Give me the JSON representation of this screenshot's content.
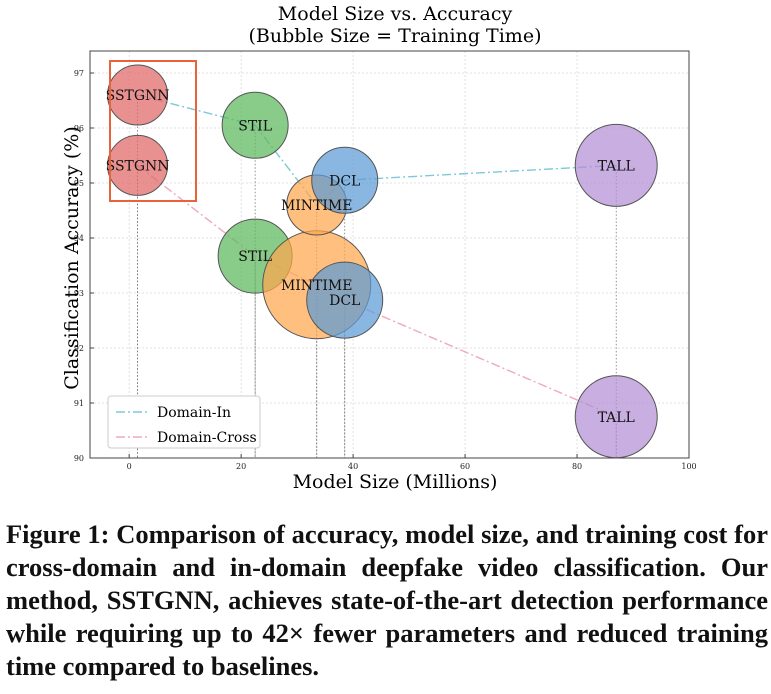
{
  "chart_data": {
    "type": "scatter",
    "title": "Model Size vs. Accuracy",
    "subtitle": "(Bubble Size = Training Time)",
    "xlabel": "Model Size (Millions)",
    "ylabel": "Classification Accuracy (%)",
    "xlim": [
      -7,
      100
    ],
    "ylim": [
      90,
      97.4
    ],
    "xticks": [
      0,
      20,
      40,
      60,
      80,
      100
    ],
    "yticks": [
      90,
      91,
      92,
      93,
      94,
      95,
      96,
      97
    ],
    "grid": true,
    "legend_position": "bottom-left",
    "series": [
      {
        "name": "Domain-In",
        "line_color": "#7ec8d8",
        "points": [
          {
            "label": "SSTGNN",
            "x": 1.5,
            "y": 96.6,
            "color": "#e06666"
          },
          {
            "label": "STIL",
            "x": 22.5,
            "y": 96.05,
            "color": "#5cb85c"
          },
          {
            "label": "MINTIME",
            "x": 33.5,
            "y": 94.6,
            "color": "#ffa64d"
          },
          {
            "label": "DCL",
            "x": 38.5,
            "y": 95.05,
            "color": "#5b9bd5"
          },
          {
            "label": "TALL",
            "x": 87,
            "y": 95.32,
            "color": "#b38fd6"
          }
        ]
      },
      {
        "name": "Domain-Cross",
        "line_color": "#f0a8c0",
        "points": [
          {
            "label": "SSTGNN",
            "x": 1.5,
            "y": 95.32,
            "color": "#e06666"
          },
          {
            "label": "STIL",
            "x": 22.5,
            "y": 93.67,
            "color": "#5cb85c"
          },
          {
            "label": "MINTIME",
            "x": 33.5,
            "y": 93.15,
            "color": "#ffa64d"
          },
          {
            "label": "DCL",
            "x": 38.5,
            "y": 92.87,
            "color": "#5b9bd5"
          },
          {
            "label": "TALL",
            "x": 87,
            "y": 90.75,
            "color": "#b38fd6"
          }
        ]
      }
    ]
  },
  "caption": "Figure 1: Comparison of accuracy, model size, and training cost for cross-domain and in-domain deepfake video classification. Our method, SSTGNN, achieves state-of-the-art detection performance while requiring up to 42× fewer parameters and reduced training time compared to baselines.",
  "highlight_color": "#e8623a"
}
